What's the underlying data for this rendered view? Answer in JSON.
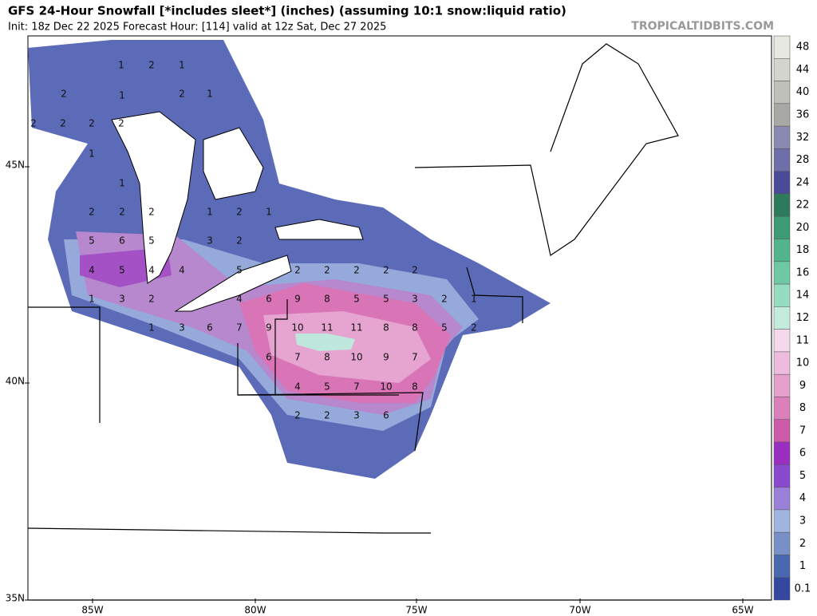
{
  "header": {
    "title": "GFS 24-Hour Snowfall [*includes sleet*] (inches) (assuming 10:1 snow:liquid ratio)",
    "subtitle": "Init: 18z Dec 22 2025   Forecast Hour: [114]   valid at 12z Sat, Dec 27 2025",
    "watermark": "TROPICALTIDBITS.COM"
  },
  "lat_labels": [
    "45N",
    "40N",
    "35N"
  ],
  "lon_labels": [
    "85W",
    "80W",
    "75W",
    "70W",
    "65W"
  ],
  "colorbar_labels": [
    "48",
    "44",
    "40",
    "36",
    "32",
    "28",
    "24",
    "22",
    "20",
    "18",
    "16",
    "14",
    "12",
    "11",
    "10",
    "9",
    "8",
    "7",
    "6",
    "5",
    "4",
    "3",
    "2",
    "1",
    "0.1"
  ],
  "map_labels": [
    "1",
    "2",
    "1",
    "1",
    "2",
    "1",
    "2",
    "2",
    "2",
    "2",
    "2",
    "1",
    "1",
    "2",
    "2",
    "2",
    "1",
    "2",
    "1",
    "5",
    "6",
    "5",
    "3",
    "2",
    "4",
    "5",
    "4",
    "4",
    "5",
    "2",
    "2",
    "2",
    "2",
    "2",
    "1",
    "3",
    "2",
    "4",
    "6",
    "9",
    "8",
    "5",
    "5",
    "3",
    "2",
    "1",
    "1",
    "3",
    "6",
    "7",
    "9",
    "10",
    "11",
    "11",
    "8",
    "8",
    "5",
    "2",
    "6",
    "7",
    "8",
    "10",
    "9",
    "7",
    "4",
    "5",
    "7",
    "10",
    "8",
    "2",
    "2",
    "3",
    "6"
  ]
}
